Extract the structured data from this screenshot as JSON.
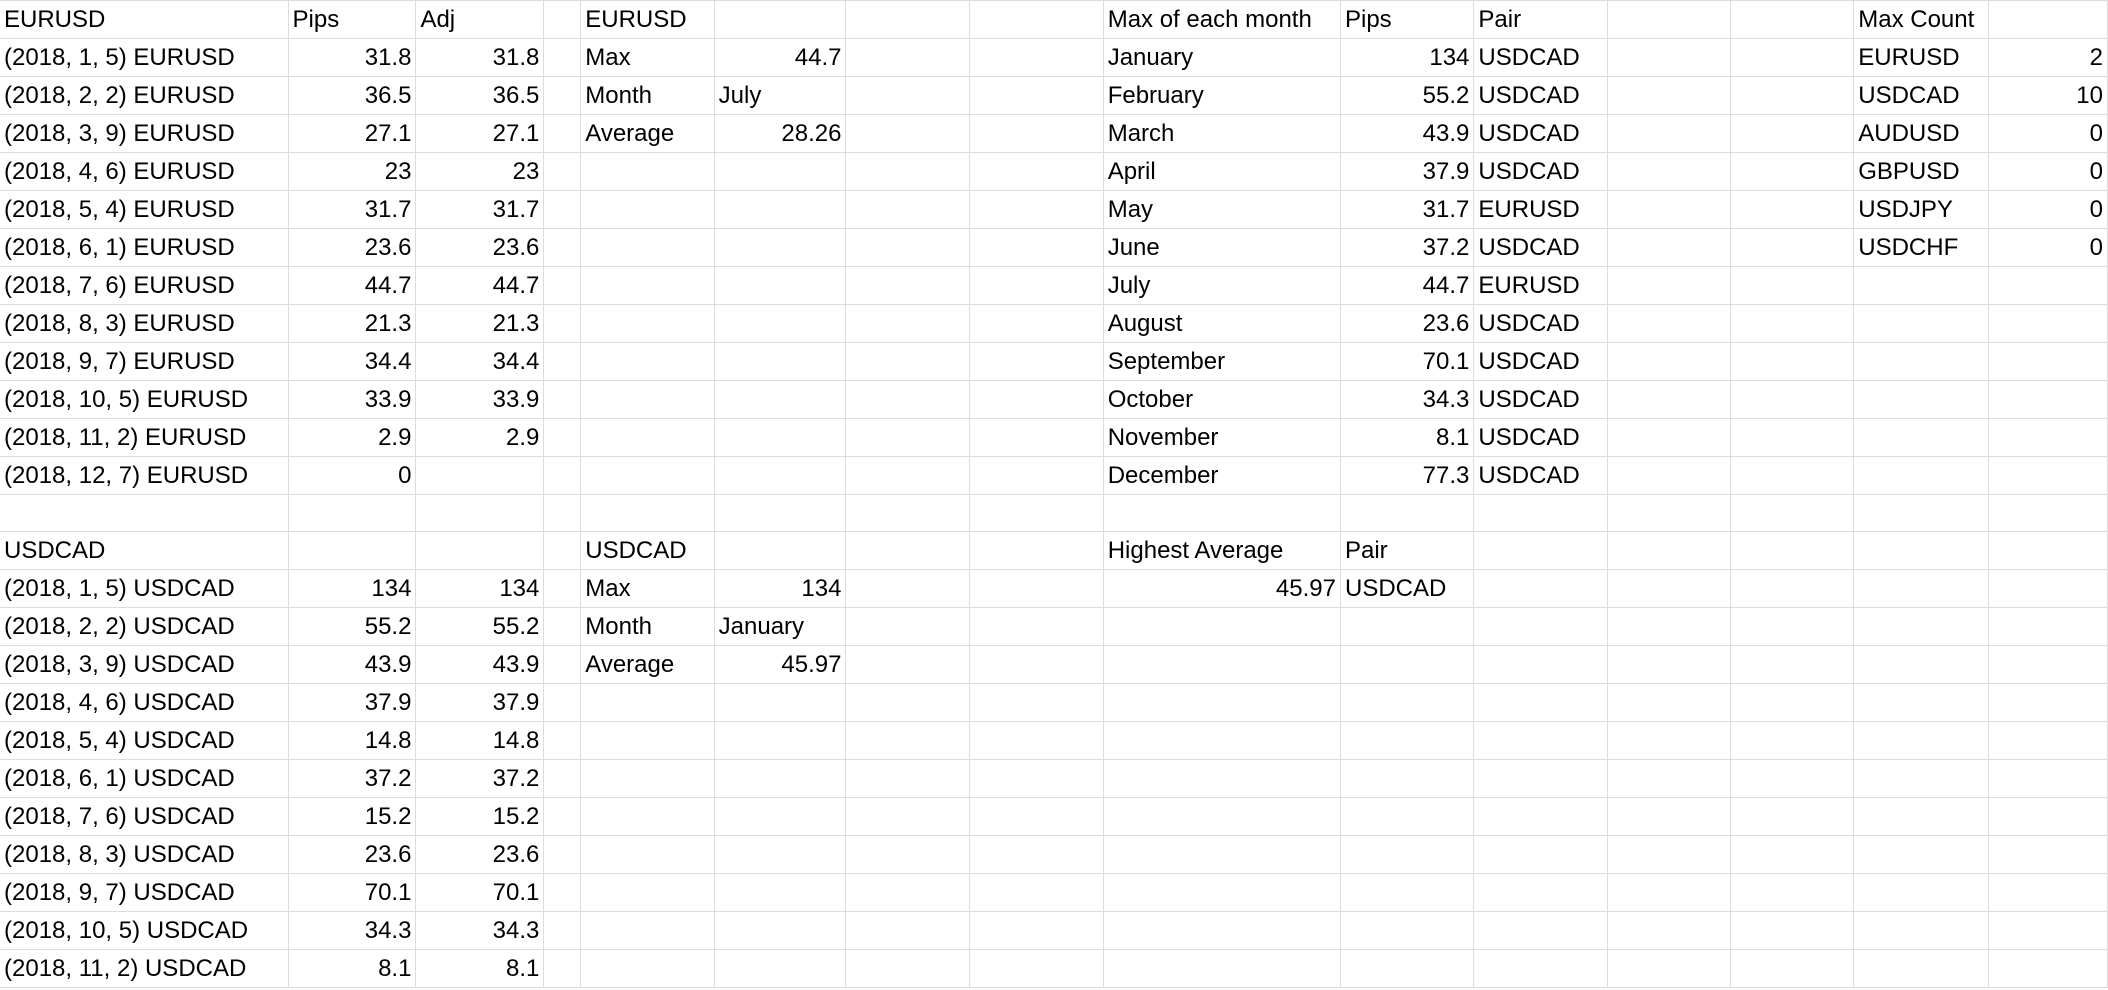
{
  "sheet": {
    "rows": [
      [
        "EURUSD",
        "Pips",
        "Adj",
        "",
        "EURUSD",
        "",
        "",
        "",
        "Max of each month",
        "Pips",
        "Pair",
        "",
        "",
        "Max Count",
        ""
      ],
      [
        "(2018, 1, 5) EURUSD",
        "31.8",
        "31.8",
        "",
        "Max",
        "44.7",
        "",
        "",
        "January",
        "134",
        "USDCAD",
        "",
        "",
        "EURUSD",
        "2"
      ],
      [
        "(2018, 2, 2) EURUSD",
        "36.5",
        "36.5",
        "",
        "Month",
        "July",
        "",
        "",
        "February",
        "55.2",
        "USDCAD",
        "",
        "",
        "USDCAD",
        "10"
      ],
      [
        "(2018, 3, 9) EURUSD",
        "27.1",
        "27.1",
        "",
        "Average",
        "28.26",
        "",
        "",
        "March",
        "43.9",
        "USDCAD",
        "",
        "",
        "AUDUSD",
        "0"
      ],
      [
        "(2018, 4, 6) EURUSD",
        "23",
        "23",
        "",
        "",
        "",
        "",
        "",
        "April",
        "37.9",
        "USDCAD",
        "",
        "",
        "GBPUSD",
        "0"
      ],
      [
        "(2018, 5, 4) EURUSD",
        "31.7",
        "31.7",
        "",
        "",
        "",
        "",
        "",
        "May",
        "31.7",
        "EURUSD",
        "",
        "",
        "USDJPY",
        "0"
      ],
      [
        "(2018, 6, 1) EURUSD",
        "23.6",
        "23.6",
        "",
        "",
        "",
        "",
        "",
        "June",
        "37.2",
        "USDCAD",
        "",
        "",
        "USDCHF",
        "0"
      ],
      [
        "(2018, 7, 6) EURUSD",
        "44.7",
        "44.7",
        "",
        "",
        "",
        "",
        "",
        "July",
        "44.7",
        "EURUSD",
        "",
        "",
        "",
        ""
      ],
      [
        "(2018, 8, 3) EURUSD",
        "21.3",
        "21.3",
        "",
        "",
        "",
        "",
        "",
        "August",
        "23.6",
        "USDCAD",
        "",
        "",
        "",
        ""
      ],
      [
        "(2018, 9, 7) EURUSD",
        "34.4",
        "34.4",
        "",
        "",
        "",
        "",
        "",
        "September",
        "70.1",
        "USDCAD",
        "",
        "",
        "",
        ""
      ],
      [
        "(2018, 10, 5) EURUSD",
        "33.9",
        "33.9",
        "",
        "",
        "",
        "",
        "",
        "October",
        "34.3",
        "USDCAD",
        "",
        "",
        "",
        ""
      ],
      [
        "(2018, 11, 2) EURUSD",
        "2.9",
        "2.9",
        "",
        "",
        "",
        "",
        "",
        "November",
        "8.1",
        "USDCAD",
        "",
        "",
        "",
        ""
      ],
      [
        "(2018, 12, 7) EURUSD",
        "0",
        "",
        "",
        "",
        "",
        "",
        "",
        "December",
        "77.3",
        "USDCAD",
        "",
        "",
        "",
        ""
      ],
      [
        "",
        "",
        "",
        "",
        "",
        "",
        "",
        "",
        "",
        "",
        "",
        "",
        "",
        "",
        ""
      ],
      [
        "USDCAD",
        "",
        "",
        "",
        "USDCAD",
        "",
        "",
        "",
        "Highest Average",
        "Pair",
        "",
        "",
        "",
        "",
        ""
      ],
      [
        "(2018, 1, 5) USDCAD",
        "134",
        "134",
        "",
        "Max",
        "134",
        "",
        "",
        "45.97",
        "USDCAD",
        "",
        "",
        "",
        "",
        ""
      ],
      [
        "(2018, 2, 2) USDCAD",
        "55.2",
        "55.2",
        "",
        "Month",
        "January",
        "",
        "",
        "",
        "",
        "",
        "",
        "",
        "",
        ""
      ],
      [
        "(2018, 3, 9) USDCAD",
        "43.9",
        "43.9",
        "",
        "Average",
        "45.97",
        "",
        "",
        "",
        "",
        "",
        "",
        "",
        "",
        ""
      ],
      [
        "(2018, 4, 6) USDCAD",
        "37.9",
        "37.9",
        "",
        "",
        "",
        "",
        "",
        "",
        "",
        "",
        "",
        "",
        "",
        ""
      ],
      [
        "(2018, 5, 4) USDCAD",
        "14.8",
        "14.8",
        "",
        "",
        "",
        "",
        "",
        "",
        "",
        "",
        "",
        "",
        "",
        ""
      ],
      [
        "(2018, 6, 1) USDCAD",
        "37.2",
        "37.2",
        "",
        "",
        "",
        "",
        "",
        "",
        "",
        "",
        "",
        "",
        "",
        ""
      ],
      [
        "(2018, 7, 6) USDCAD",
        "15.2",
        "15.2",
        "",
        "",
        "",
        "",
        "",
        "",
        "",
        "",
        "",
        "",
        "",
        ""
      ],
      [
        "(2018, 8, 3) USDCAD",
        "23.6",
        "23.6",
        "",
        "",
        "",
        "",
        "",
        "",
        "",
        "",
        "",
        "",
        "",
        ""
      ],
      [
        "(2018, 9, 7) USDCAD",
        "70.1",
        "70.1",
        "",
        "",
        "",
        "",
        "",
        "",
        "",
        "",
        "",
        "",
        "",
        ""
      ],
      [
        "(2018, 10, 5) USDCAD",
        "34.3",
        "34.3",
        "",
        "",
        "",
        "",
        "",
        "",
        "",
        "",
        "",
        "",
        "",
        ""
      ],
      [
        "(2018, 11, 2) USDCAD",
        "8.1",
        "8.1",
        "",
        "",
        "",
        "",
        "",
        "",
        "",
        "",
        "",
        "",
        "",
        ""
      ]
    ]
  },
  "colors": {
    "gridline": "#dadcdf",
    "text": "#000000",
    "background": "#ffffff"
  }
}
